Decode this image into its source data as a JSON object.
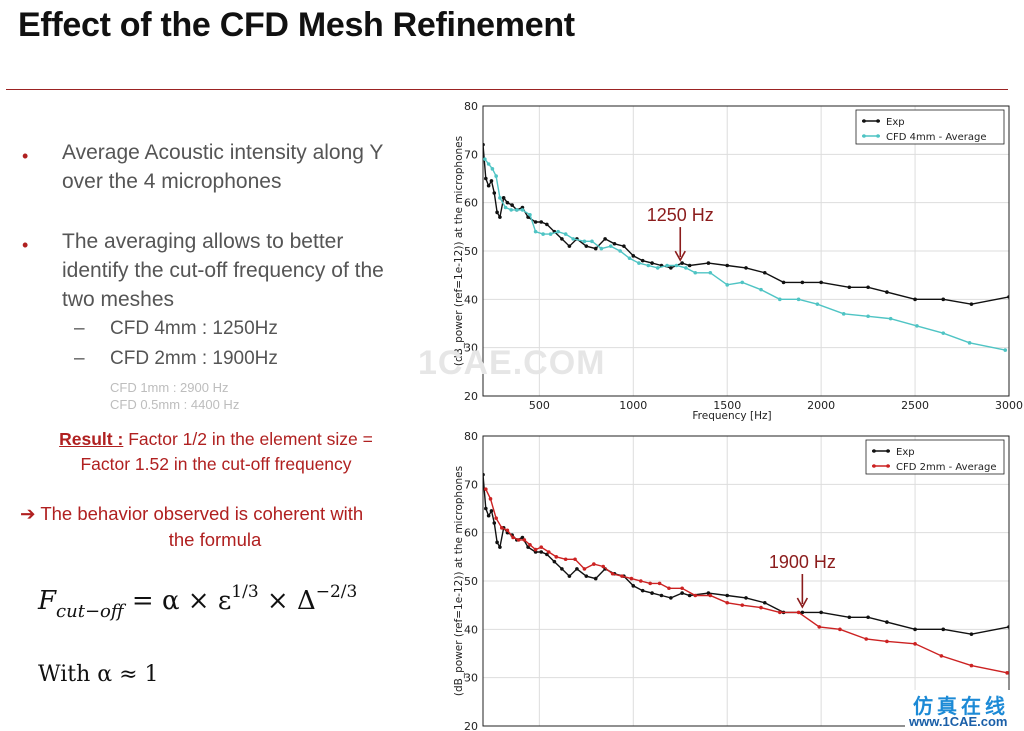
{
  "title": "Effect of the CFD Mesh Refinement",
  "bullets": [
    {
      "lines": [
        "Average Acoustic intensity along Y",
        "over the 4 microphones"
      ]
    },
    {
      "lines": [
        "The averaging allows to better",
        "identify the cut-off frequency of the",
        "two meshes"
      ]
    }
  ],
  "sub_items": [
    "CFD 4mm : 1250Hz",
    "CFD 2mm : 1900Hz"
  ],
  "small_items": [
    "CFD 1mm : 2900 Hz",
    "CFD 0.5mm : 4400 Hz"
  ],
  "result": {
    "label": "Result :",
    "line1": " Factor 1/2 in the element size =",
    "line2": "Factor 1.52 in the cut-off frequency"
  },
  "behavior": {
    "arrow": "➔",
    "line1": " The behavior observed is coherent with",
    "line2": "the formula"
  },
  "formula": {
    "F": "F",
    "sub": "cut−off",
    "eq": " = α × ε",
    "sup1": "1/3",
    "mid": " × Δ",
    "sup2": "−2/3"
  },
  "with_text": "With α ≈ 1",
  "watermark": "1CAE.COM",
  "site": {
    "cn": "仿真在线",
    "url": "www.1CAE.com"
  },
  "colors": {
    "exp": "#111111",
    "cfd4": "#4fc4c4",
    "cfd2": "#cc2222",
    "accent": "#b02020",
    "grid": "#dddddd"
  },
  "chart_data": [
    {
      "type": "line",
      "xlabel": "Frequency [Hz]",
      "ylabel": "(dB_power (ref=1e-12)) at the microphones",
      "xlim": [
        200,
        3000
      ],
      "ylim": [
        20,
        80
      ],
      "xticks": [
        500,
        1000,
        1500,
        2000,
        2500,
        3000
      ],
      "yticks": [
        20,
        30,
        40,
        50,
        60,
        70,
        80
      ],
      "grid": true,
      "legend": "top-right",
      "annotation": {
        "text": "1250 Hz",
        "x": 1250,
        "y": 47.5
      },
      "series": [
        {
          "name": "Exp",
          "color": "#111111",
          "x": [
            200,
            215,
            230,
            245,
            260,
            275,
            290,
            310,
            330,
            355,
            380,
            410,
            440,
            480,
            510,
            540,
            580,
            620,
            660,
            700,
            750,
            800,
            850,
            900,
            950,
            1000,
            1050,
            1100,
            1150,
            1200,
            1260,
            1300,
            1400,
            1500,
            1600,
            1700,
            1800,
            1900,
            2000,
            2150,
            2250,
            2350,
            2500,
            2650,
            2800,
            3000
          ],
          "y": [
            72,
            65,
            63.5,
            64.5,
            62,
            58,
            57,
            61,
            60,
            59.5,
            58.5,
            59,
            57,
            56,
            56,
            55.5,
            54,
            52.5,
            51,
            52.5,
            51,
            50.5,
            52.5,
            51.5,
            51,
            49,
            48,
            47.5,
            47,
            46.5,
            47.5,
            47,
            47.5,
            47,
            46.5,
            45.5,
            43.5,
            43.5,
            43.5,
            42.5,
            42.5,
            41.5,
            40,
            40,
            39,
            40.5
          ]
        },
        {
          "name": "CFD 4mm - Average",
          "color": "#4fc4c4",
          "x": [
            210,
            230,
            250,
            270,
            290,
            320,
            350,
            380,
            410,
            450,
            480,
            520,
            560,
            600,
            640,
            680,
            740,
            780,
            830,
            880,
            930,
            980,
            1030,
            1080,
            1130,
            1180,
            1230,
            1280,
            1330,
            1410,
            1500,
            1580,
            1680,
            1780,
            1880,
            1980,
            2120,
            2250,
            2370,
            2510,
            2650,
            2790,
            2980
          ],
          "y": [
            69,
            68,
            67,
            65.5,
            61,
            59,
            58.5,
            58.5,
            58.5,
            57.5,
            54,
            53.5,
            53.5,
            54,
            53.5,
            52.5,
            52,
            52,
            50.5,
            51,
            50,
            48.5,
            47.5,
            47,
            46.5,
            47,
            47,
            46.5,
            45.5,
            45.5,
            43,
            43.5,
            42,
            40,
            40,
            39,
            37,
            36.5,
            36,
            34.5,
            33,
            31,
            29.5
          ]
        }
      ]
    },
    {
      "type": "line",
      "xlabel": "",
      "ylabel": "(dB_power (ref=1e-12)) at the microphones",
      "xlim": [
        200,
        3000
      ],
      "ylim": [
        20,
        80
      ],
      "xticks": [
        500,
        1000,
        1500,
        2000,
        2500,
        3000
      ],
      "yticks": [
        20,
        30,
        40,
        50,
        60,
        70,
        80
      ],
      "grid": true,
      "legend": "top-right",
      "annotation": {
        "text": "1900 Hz",
        "x": 1900,
        "y": 44
      },
      "series": [
        {
          "name": "Exp",
          "color": "#111111",
          "x": [
            200,
            215,
            230,
            245,
            260,
            275,
            290,
            310,
            330,
            355,
            380,
            410,
            440,
            480,
            510,
            540,
            580,
            620,
            660,
            700,
            750,
            800,
            850,
            900,
            950,
            1000,
            1050,
            1100,
            1150,
            1200,
            1260,
            1300,
            1400,
            1500,
            1600,
            1700,
            1800,
            1900,
            2000,
            2150,
            2250,
            2350,
            2500,
            2650,
            2800,
            3000
          ],
          "y": [
            72,
            65,
            63.5,
            64.5,
            62,
            58,
            57,
            61,
            60,
            59.5,
            58.5,
            59,
            57,
            56,
            56,
            55.5,
            54,
            52.5,
            51,
            52.5,
            51,
            50.5,
            52.5,
            51.5,
            51,
            49,
            48,
            47.5,
            47,
            46.5,
            47.5,
            47,
            47.5,
            47,
            46.5,
            45.5,
            43.5,
            43.5,
            43.5,
            42.5,
            42.5,
            41.5,
            40,
            40,
            39,
            40.5
          ]
        },
        {
          "name": "CFD 2mm - Average",
          "color": "#cc2222",
          "x": [
            215,
            240,
            270,
            300,
            330,
            360,
            390,
            420,
            450,
            480,
            510,
            550,
            590,
            640,
            690,
            740,
            790,
            840,
            890,
            940,
            990,
            1040,
            1090,
            1140,
            1190,
            1260,
            1330,
            1410,
            1500,
            1580,
            1680,
            1780,
            1880,
            1990,
            2100,
            2240,
            2350,
            2500,
            2640,
            2800,
            2990
          ],
          "y": [
            69,
            67,
            63,
            61,
            60.5,
            59,
            58.5,
            58.5,
            57.5,
            56.5,
            57,
            56,
            55,
            54.5,
            54.5,
            52.5,
            53.5,
            53,
            51.5,
            51,
            50.5,
            50,
            49.5,
            49.5,
            48.5,
            48.5,
            47,
            47,
            45.5,
            45,
            44.5,
            43.5,
            43.5,
            40.5,
            40,
            38,
            37.5,
            37,
            34.5,
            32.5,
            31
          ]
        }
      ]
    }
  ]
}
